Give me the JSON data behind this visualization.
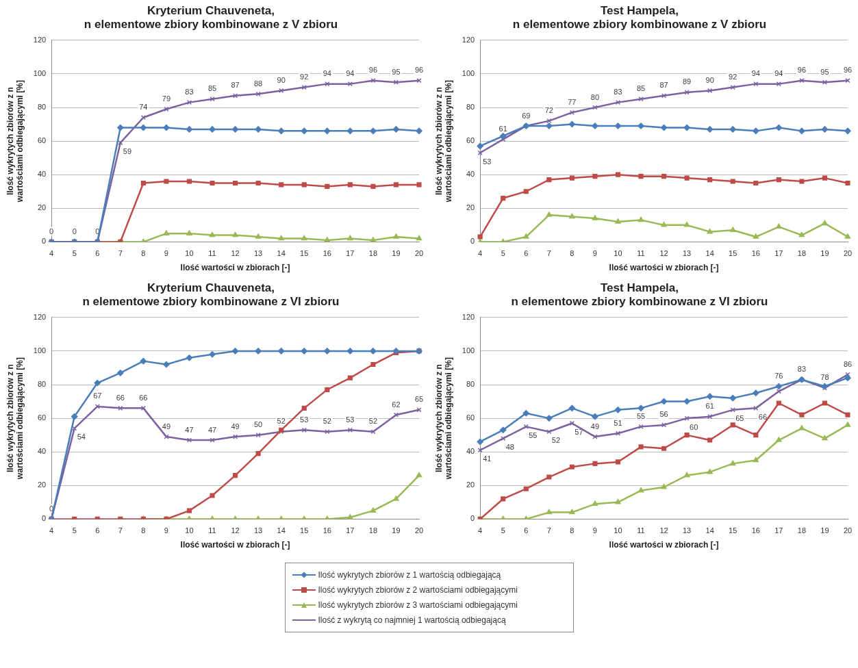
{
  "chart_data": [
    {
      "type": "line",
      "title": "Kryterium Chauveneta,\nn elementowe zbiory kombinowane z V zbioru",
      "xlabel": "Ilość wartości w zbiorach [-]",
      "ylabel": "Ilość wykrytych zbiorów z n wartościami odbiegającymi [%]",
      "categories": [
        "4",
        "5",
        "6",
        "7",
        "8",
        "9",
        "10",
        "11",
        "12",
        "13",
        "14",
        "15",
        "16",
        "17",
        "18",
        "19",
        "20"
      ],
      "ylim": [
        0,
        120
      ],
      "yticks": [
        0,
        20,
        40,
        60,
        80,
        100,
        120
      ],
      "grid": "y",
      "legend": "bottom",
      "series": [
        {
          "name": "Ilość wykrytych zbiorów z 1 wartością odbiegającą",
          "color": "#4a7ebb",
          "marker": "diamond",
          "values": [
            0,
            0,
            0,
            68,
            68,
            68,
            67,
            67,
            67,
            67,
            66,
            66,
            66,
            66,
            66,
            67,
            66
          ]
        },
        {
          "name": "Ilość wykrytych zbiorów z 2 wartościami odbiegającymi",
          "color": "#be4b48",
          "marker": "square",
          "values": [
            0,
            0,
            0,
            0,
            35,
            36,
            36,
            35,
            35,
            35,
            34,
            34,
            33,
            34,
            33,
            34,
            34
          ]
        },
        {
          "name": "Ilość wykrytych zbiorów z 3 wartościami odbiegającymi",
          "color": "#98b954",
          "marker": "triangle",
          "values": [
            null,
            null,
            0,
            0,
            0,
            5,
            5,
            4,
            4,
            3,
            2,
            2,
            1,
            2,
            1,
            3,
            2
          ]
        },
        {
          "name": "Ilość z wykrytą co najmniej 1 wartością odbiegającą",
          "color": "#7d60a0",
          "marker": "cross",
          "values": [
            0,
            0,
            0,
            59,
            74,
            79,
            83,
            85,
            87,
            88,
            90,
            92,
            94,
            94,
            96,
            95,
            96
          ],
          "value_labels": [
            "0",
            "0",
            "0",
            "59",
            "74",
            "79",
            "83",
            "85",
            "87",
            "88",
            "90",
            "92",
            "94",
            "94",
            "96",
            "95",
            "96"
          ]
        }
      ]
    },
    {
      "type": "line",
      "title": "Test Hampela,\nn elementowe zbiory kombinowane z V zbioru",
      "xlabel": "Ilość wartości w zbiorach [-]",
      "ylabel": "Ilość wykrytych zbiorów z n wartościami odbiegającymi [%]",
      "categories": [
        "4",
        "5",
        "6",
        "7",
        "8",
        "9",
        "10",
        "11",
        "12",
        "13",
        "14",
        "15",
        "16",
        "17",
        "18",
        "19",
        "20"
      ],
      "ylim": [
        0,
        120
      ],
      "yticks": [
        0,
        20,
        40,
        60,
        80,
        100,
        120
      ],
      "grid": "y",
      "series": [
        {
          "color": "#4a7ebb",
          "marker": "diamond",
          "values": [
            57,
            63,
            69,
            69,
            70,
            69,
            69,
            69,
            68,
            68,
            67,
            67,
            66,
            68,
            66,
            67,
            66
          ]
        },
        {
          "color": "#be4b48",
          "marker": "square",
          "values": [
            3,
            26,
            30,
            37,
            38,
            39,
            40,
            39,
            39,
            38,
            37,
            36,
            35,
            37,
            36,
            38,
            35
          ]
        },
        {
          "color": "#98b954",
          "marker": "triangle",
          "values": [
            0,
            0,
            3,
            16,
            15,
            14,
            12,
            13,
            10,
            10,
            6,
            7,
            3,
            9,
            4,
            11,
            3
          ]
        },
        {
          "color": "#7d60a0",
          "marker": "cross",
          "values": [
            53,
            61,
            69,
            72,
            77,
            80,
            83,
            85,
            87,
            89,
            90,
            92,
            94,
            94,
            96,
            95,
            96
          ],
          "value_labels": [
            "53",
            "61",
            "69",
            "72",
            "77",
            "80",
            "83",
            "85",
            "87",
            "89",
            "90",
            "92",
            "94",
            "94",
            "96",
            "95",
            "96"
          ]
        }
      ]
    },
    {
      "type": "line",
      "title": "Kryterium Chauveneta,\nn elementowe zbiory kombinowane z VI zbioru",
      "xlabel": "Ilość wartości w zbiorach [-]",
      "ylabel": "Ilość wykrytych zbiorów z n wartościami odbiegającymi [%]",
      "categories": [
        "4",
        "5",
        "6",
        "7",
        "8",
        "9",
        "10",
        "11",
        "12",
        "13",
        "14",
        "15",
        "16",
        "17",
        "18",
        "19",
        "20"
      ],
      "ylim": [
        0,
        120
      ],
      "yticks": [
        0,
        20,
        40,
        60,
        80,
        100,
        120
      ],
      "grid": "y",
      "series": [
        {
          "color": "#4a7ebb",
          "marker": "diamond",
          "values": [
            0,
            61,
            81,
            87,
            94,
            92,
            96,
            98,
            100,
            100,
            100,
            100,
            100,
            100,
            100,
            100,
            100
          ]
        },
        {
          "color": "#be4b48",
          "marker": "square",
          "values": [
            0,
            0,
            0,
            0,
            0,
            0,
            5,
            14,
            26,
            39,
            53,
            66,
            77,
            84,
            92,
            99,
            100
          ]
        },
        {
          "color": "#98b954",
          "marker": "triangle",
          "values": [
            null,
            null,
            null,
            null,
            0,
            0,
            0,
            0,
            0,
            0,
            0,
            0,
            0,
            1,
            5,
            12,
            26
          ]
        },
        {
          "color": "#7d60a0",
          "marker": "cross",
          "values": [
            0,
            54,
            67,
            66,
            66,
            49,
            47,
            47,
            49,
            50,
            52,
            53,
            52,
            53,
            52,
            62,
            65
          ],
          "value_labels": [
            "0",
            "54",
            "67",
            "66",
            "66",
            "49",
            "47",
            "47",
            "49",
            "50",
            "52",
            "53",
            "52",
            "53",
            "52",
            "62",
            "65"
          ]
        }
      ]
    },
    {
      "type": "line",
      "title": "Test Hampela,\nn elementowe zbiory kombinowane z VI zbioru",
      "xlabel": "Ilość wartości w zbiorach [-]",
      "ylabel": "Ilość wykrytych zbiorów z n wartościami odbiegającymi [%]",
      "categories": [
        "4",
        "5",
        "6",
        "7",
        "8",
        "9",
        "10",
        "11",
        "12",
        "13",
        "14",
        "15",
        "16",
        "17",
        "18",
        "19",
        "20"
      ],
      "ylim": [
        0,
        120
      ],
      "yticks": [
        0,
        20,
        40,
        60,
        80,
        100,
        120
      ],
      "grid": "y",
      "series": [
        {
          "color": "#4a7ebb",
          "marker": "diamond",
          "values": [
            46,
            53,
            63,
            60,
            66,
            61,
            65,
            66,
            70,
            70,
            73,
            72,
            75,
            79,
            83,
            79,
            84
          ]
        },
        {
          "color": "#be4b48",
          "marker": "square",
          "values": [
            0,
            12,
            18,
            25,
            31,
            33,
            34,
            43,
            42,
            50,
            47,
            56,
            50,
            69,
            62,
            69,
            62
          ]
        },
        {
          "color": "#98b954",
          "marker": "triangle",
          "values": [
            0,
            0,
            0,
            4,
            4,
            9,
            10,
            17,
            19,
            26,
            28,
            33,
            35,
            47,
            54,
            48,
            56
          ]
        },
        {
          "color": "#7d60a0",
          "marker": "cross",
          "values": [
            41,
            48,
            55,
            52,
            57,
            49,
            51,
            55,
            56,
            60,
            61,
            65,
            66,
            76,
            83,
            78,
            86
          ],
          "value_labels": [
            "41",
            "48",
            "55",
            "52",
            "57",
            "49",
            "51",
            "55",
            "56",
            "60",
            "61",
            "65",
            "66",
            "76",
            "83",
            "78",
            "86"
          ]
        }
      ]
    }
  ]
}
